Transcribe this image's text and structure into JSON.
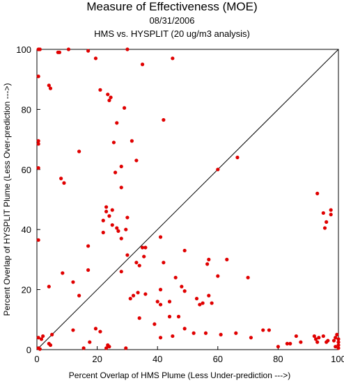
{
  "chart_data": {
    "type": "scatter",
    "title": "Measure of Effectiveness (MOE)",
    "subtitle": "08/31/2006",
    "subtitle2": "HMS vs. HYSPLIT  (20 ug/m3 analysis)",
    "xlabel": "Percent Overlap of HMS Plume (Less Under-prediction --->)",
    "ylabel": "Percent Overlap of HYSPLIT Plume (Less Over-prediction --->)",
    "xlim": [
      0,
      100
    ],
    "ylim": [
      0,
      100
    ],
    "xticks": [
      "0",
      "20",
      "40",
      "60",
      "80",
      "100"
    ],
    "yticks": [
      "0",
      "20",
      "40",
      "60",
      "80",
      "100"
    ],
    "reference_line": "1:1 diagonal",
    "marker_color": "#e00000",
    "grid": false,
    "points": [
      [
        0.5,
        100
      ],
      [
        1,
        100
      ],
      [
        7,
        99
      ],
      [
        7.5,
        99
      ],
      [
        10.5,
        100
      ],
      [
        17,
        99.5
      ],
      [
        19.5,
        97
      ],
      [
        30,
        100
      ],
      [
        0.5,
        91
      ],
      [
        4,
        88
      ],
      [
        4.5,
        87
      ],
      [
        35,
        95
      ],
      [
        45,
        97
      ],
      [
        21,
        86.5
      ],
      [
        23.5,
        85
      ],
      [
        24,
        83
      ],
      [
        24.5,
        84
      ],
      [
        29,
        80.5
      ],
      [
        42,
        76.5
      ],
      [
        26.5,
        75.5
      ],
      [
        0.5,
        69.5
      ],
      [
        0.5,
        68.5
      ],
      [
        14,
        66
      ],
      [
        25.5,
        69
      ],
      [
        31.5,
        69.5
      ],
      [
        33,
        63
      ],
      [
        66.5,
        64
      ],
      [
        0.5,
        60.5
      ],
      [
        8,
        57
      ],
      [
        9,
        55.5
      ],
      [
        26,
        59
      ],
      [
        28,
        61
      ],
      [
        28,
        54
      ],
      [
        60,
        60
      ],
      [
        23,
        47.5
      ],
      [
        23,
        46
      ],
      [
        24,
        44.5
      ],
      [
        25,
        46.5
      ],
      [
        22,
        43
      ],
      [
        25,
        41.5
      ],
      [
        26.5,
        40.5
      ],
      [
        27,
        39.5
      ],
      [
        30,
        44
      ],
      [
        29.5,
        40
      ],
      [
        22,
        39
      ],
      [
        28,
        37
      ],
      [
        41,
        37.5
      ],
      [
        0.5,
        36.5
      ],
      [
        17,
        34.5
      ],
      [
        35,
        34
      ],
      [
        36,
        34
      ],
      [
        49,
        33
      ],
      [
        93,
        52
      ],
      [
        95,
        45.5
      ],
      [
        97.5,
        46.5
      ],
      [
        97.5,
        45
      ],
      [
        96,
        42.5
      ],
      [
        95.5,
        40.5
      ],
      [
        30,
        31.5
      ],
      [
        35.5,
        31
      ],
      [
        28,
        26
      ],
      [
        17,
        26.5
      ],
      [
        33,
        29
      ],
      [
        34,
        28
      ],
      [
        42,
        29
      ],
      [
        57,
        30
      ],
      [
        63,
        30
      ],
      [
        56.5,
        28.5
      ],
      [
        8.5,
        25.5
      ],
      [
        12,
        22.5
      ],
      [
        4,
        21
      ],
      [
        14,
        18
      ],
      [
        31,
        17
      ],
      [
        32,
        18
      ],
      [
        33.5,
        19
      ],
      [
        36,
        18.5
      ],
      [
        41,
        20
      ],
      [
        46,
        24
      ],
      [
        48,
        21
      ],
      [
        49,
        19.5
      ],
      [
        60,
        24.5
      ],
      [
        70,
        24
      ],
      [
        40,
        16
      ],
      [
        41,
        15
      ],
      [
        44,
        16
      ],
      [
        44,
        11
      ],
      [
        47,
        11
      ],
      [
        53,
        17
      ],
      [
        54,
        15
      ],
      [
        55,
        15.5
      ],
      [
        57,
        18
      ],
      [
        58,
        15.5
      ],
      [
        34,
        10.5
      ],
      [
        39,
        8.5
      ],
      [
        49,
        7
      ],
      [
        12,
        6.5
      ],
      [
        19.5,
        7
      ],
      [
        21,
        6
      ],
      [
        5,
        5
      ],
      [
        2,
        4.5
      ],
      [
        1.5,
        3.5
      ],
      [
        0.5,
        4
      ],
      [
        4,
        2
      ],
      [
        4.5,
        1.5
      ],
      [
        17.5,
        2.5
      ],
      [
        23,
        0.5
      ],
      [
        23.5,
        1.5
      ],
      [
        24,
        1
      ],
      [
        29.5,
        0.5
      ],
      [
        41,
        4
      ],
      [
        45,
        4.5
      ],
      [
        52,
        5.5
      ],
      [
        56,
        5.5
      ],
      [
        61,
        5
      ],
      [
        66,
        5.5
      ],
      [
        71,
        4
      ],
      [
        75,
        6.5
      ],
      [
        77,
        6.5
      ],
      [
        80,
        1
      ],
      [
        83,
        2
      ],
      [
        84,
        2
      ],
      [
        86,
        4.5
      ],
      [
        87.5,
        2.5
      ],
      [
        92,
        4.5
      ],
      [
        92.5,
        3.5
      ],
      [
        93,
        2.5
      ],
      [
        93.5,
        4
      ],
      [
        95,
        4.5
      ],
      [
        96,
        2.5
      ],
      [
        96.5,
        3
      ],
      [
        98.5,
        3
      ],
      [
        99,
        4
      ],
      [
        99.5,
        5
      ],
      [
        100,
        3.5
      ],
      [
        100,
        2.5
      ],
      [
        100,
        1.5
      ],
      [
        100,
        0.5
      ],
      [
        99,
        1
      ],
      [
        0.5,
        0.5
      ],
      [
        1,
        0.2
      ],
      [
        15.5,
        0.5
      ]
    ]
  }
}
